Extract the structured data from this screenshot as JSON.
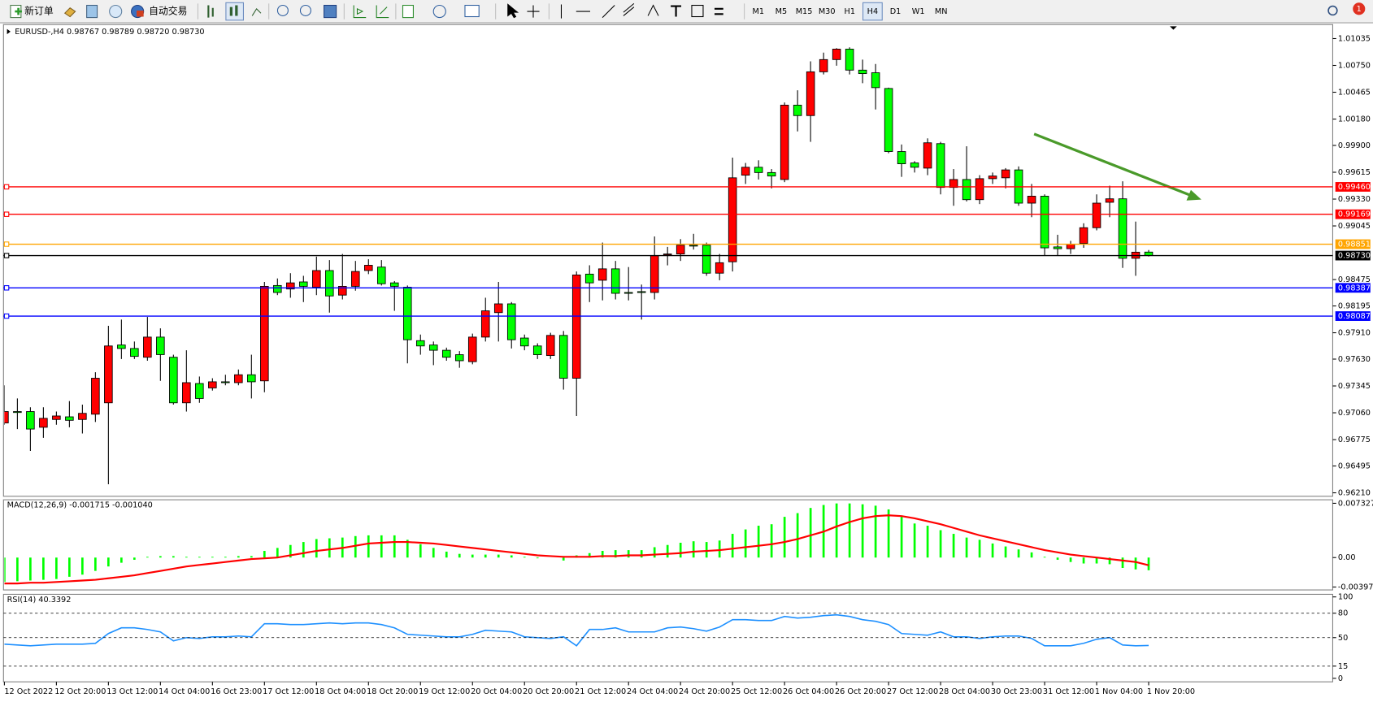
{
  "toolbar": {
    "new_order": "新订单",
    "auto_trading": "自动交易",
    "timeframes": [
      "M1",
      "M5",
      "M15",
      "M30",
      "H1",
      "H4",
      "D1",
      "W1",
      "MN"
    ],
    "active_timeframe": 5,
    "notifications": 1
  },
  "chart_data": [
    {
      "type": "candlestick",
      "title": "EURUSD-,H4  0.98767 0.98789 0.98720 0.98730",
      "categories": [
        "12 Oct 2022",
        null,
        null,
        null,
        "12 Oct 20:00",
        null,
        null,
        null,
        "13 Oct 12:00",
        null,
        null,
        null,
        "14 Oct 04:00",
        null,
        null,
        null,
        "16 Oct 23:00",
        null,
        null,
        null,
        "17 Oct 12:00",
        null,
        null,
        null,
        "18 Oct 04:00",
        null,
        null,
        null,
        "18 Oct 20:00",
        null,
        null,
        null,
        "19 Oct 12:00",
        null,
        null,
        null,
        "20 Oct 04:00",
        null,
        null,
        null,
        "20 Oct 20:00",
        null,
        null,
        null,
        "21 Oct 12:00",
        null,
        null,
        null,
        "24 Oct 04:00",
        null,
        null,
        null,
        "24 Oct 20:00",
        null,
        null,
        null,
        "25 Oct 12:00",
        null,
        null,
        null,
        "26 Oct 04:00",
        null,
        null,
        null,
        "26 Oct 20:00",
        null,
        null,
        null,
        "27 Oct 12:00",
        null,
        null,
        null,
        "28 Oct 04:00",
        null,
        null,
        null,
        "30 Oct 23:00",
        null,
        null,
        null,
        "31 Oct 12:00",
        null,
        null,
        null,
        "1 Nov 04:00",
        null,
        null,
        null,
        "1 Nov 20:00"
      ],
      "open": [
        0.96952,
        0.97073,
        0.97073,
        0.96906,
        0.96989,
        0.97017,
        0.96989,
        0.97045,
        0.97166,
        0.9778,
        0.97743,
        0.9765,
        0.97864,
        0.9765,
        0.97166,
        0.97371,
        0.97324,
        0.97389,
        0.9738,
        0.97464,
        0.97399,
        0.98412,
        0.98375,
        0.9845,
        0.98394,
        0.98571,
        0.9831,
        0.98403,
        0.98571,
        0.98608,
        0.9844,
        0.98394,
        0.97826,
        0.9778,
        0.97724,
        0.97677,
        0.97603,
        0.97864,
        0.98124,
        0.98217,
        0.97854,
        0.9777,
        0.97668,
        0.97882,
        0.97427,
        0.98533,
        0.98468,
        0.98589,
        0.98338,
        0.98347,
        0.98338,
        0.98738,
        0.98747,
        0.9884,
        0.9884,
        0.98543,
        0.98664,
        0.99584,
        0.99668,
        0.99612,
        0.99538,
        1.00328,
        1.00217,
        1.00682,
        1.00812,
        1.00923,
        1.007,
        1.00672,
        1.00505,
        0.99835,
        0.99714,
        0.99659,
        0.99919,
        0.99454,
        0.99538,
        0.99324,
        0.99547,
        0.99556,
        0.9964,
        0.99287,
        0.99361,
        0.98822,
        0.98803,
        0.98859,
        0.99026,
        0.99296,
        0.99333,
        0.98701,
        0.98767
      ],
      "high": [
        0.97352,
        0.97212,
        0.97119,
        0.97119,
        0.97073,
        0.97184,
        0.97147,
        0.97491,
        0.97984,
        0.9805,
        0.97817,
        0.98078,
        0.97957,
        0.97677,
        0.97724,
        0.97445,
        0.97427,
        0.97464,
        0.9752,
        0.97677,
        0.9845,
        0.98487,
        0.98543,
        0.98515,
        0.98719,
        0.98682,
        0.98747,
        0.98673,
        0.98691,
        0.98682,
        0.98459,
        0.98412,
        0.97891,
        0.97817,
        0.97752,
        0.97715,
        0.97901,
        0.98282,
        0.9845,
        0.98236,
        0.97891,
        0.97798,
        0.9791,
        0.97929,
        0.98561,
        0.98627,
        0.98868,
        0.98673,
        0.98608,
        0.98422,
        0.98933,
        0.98822,
        0.98905,
        0.98961,
        0.98868,
        0.98747,
        0.9977,
        0.99714,
        0.99742,
        0.99649,
        1.00356,
        1.00486,
        1.00793,
        1.00886,
        1.00933,
        1.00942,
        1.00812,
        1.00765,
        1.00514,
        0.9991,
        0.99733,
        0.99975,
        0.99938,
        0.99649,
        0.99891,
        0.99584,
        0.99612,
        0.99659,
        0.99677,
        0.99491,
        0.9938,
        0.98951,
        0.98886,
        0.99073,
        0.9938,
        0.99472,
        0.99519,
        0.99091,
        0.98789
      ],
      "low": [
        0.96933,
        0.96887,
        0.96655,
        0.96794,
        0.96933,
        0.96906,
        0.9684,
        0.96962,
        0.96301,
        0.97631,
        0.97631,
        0.97613,
        0.97399,
        0.97147,
        0.97073,
        0.97166,
        0.97296,
        0.97352,
        0.97352,
        0.97212,
        0.97278,
        0.9831,
        0.98282,
        0.98236,
        0.9831,
        0.98124,
        0.98264,
        0.98357,
        0.98533,
        0.98412,
        0.98143,
        0.97585,
        0.97677,
        0.97566,
        0.97613,
        0.97538,
        0.97575,
        0.97817,
        0.97817,
        0.97743,
        0.97724,
        0.97631,
        0.97631,
        0.97306,
        0.97026,
        0.98236,
        0.98254,
        0.98264,
        0.98254,
        0.9805,
        0.98264,
        0.98626,
        0.98673,
        0.98794,
        0.98515,
        0.98468,
        0.98561,
        0.99491,
        0.99538,
        0.99444,
        0.9951,
        1.00049,
        0.99938,
        1.00654,
        1.00747,
        1.00654,
        1.00561,
        1.00282,
        0.99817,
        0.99566,
        0.99612,
        0.99584,
        0.9938,
        0.99259,
        0.99305,
        0.99277,
        0.99491,
        0.99444,
        0.99259,
        0.99138,
        0.98729,
        0.98729,
        0.98747,
        0.98812,
        0.98998,
        0.99138,
        0.98599,
        0.98515,
        0.9872
      ],
      "close": [
        0.97073,
        0.97063,
        0.96887,
        0.97001,
        0.97026,
        0.9698,
        0.97054,
        0.97427,
        0.9777,
        0.97743,
        0.97659,
        0.97864,
        0.97678,
        0.97166,
        0.9738,
        0.97212,
        0.97389,
        0.9738,
        0.97464,
        0.97389,
        0.98403,
        0.98338,
        0.9844,
        0.98403,
        0.98571,
        0.98301,
        0.98403,
        0.98561,
        0.98627,
        0.98431,
        0.98403,
        0.97836,
        0.9777,
        0.97724,
        0.9765,
        0.97613,
        0.97864,
        0.98143,
        0.98217,
        0.97836,
        0.9777,
        0.97677,
        0.97882,
        0.97427,
        0.98524,
        0.9844,
        0.98589,
        0.98329,
        0.98329,
        0.98338,
        0.98729,
        0.98747,
        0.9884,
        0.98831,
        0.98543,
        0.98654,
        0.99556,
        0.99668,
        0.99612,
        0.99575,
        1.00328,
        1.00217,
        1.00682,
        1.00812,
        1.00923,
        1.007,
        1.00663,
        1.00514,
        0.99835,
        0.99705,
        0.99668,
        0.99928,
        0.99454,
        0.99538,
        0.99324,
        0.99547,
        0.99575,
        0.9964,
        0.99287,
        0.99361,
        0.98812,
        0.98803,
        0.9885,
        0.99026,
        0.99287,
        0.99333,
        0.98701,
        0.98766,
        0.9873
      ],
      "up_color": "#ff0000",
      "down_color": "#00ff00",
      "ylim": [
        0.96173,
        1.01184
      ],
      "yticks": [
        1.01035,
        {
          "value": 1.0075,
          "label": "1.00750"
        },
        1.00465,
        {
          "value": 1.0018,
          "label": "1.00180"
        },
        {
          "value": 0.999,
          "label": "0.99900"
        },
        0.99615,
        {
          "value": 0.9933,
          "label": "0.99330"
        },
        0.99045,
        0.98475,
        0.98195,
        {
          "value": 0.9791,
          "label": "0.97910"
        },
        {
          "value": 0.9763,
          "label": "0.97630"
        },
        0.97345,
        {
          "value": 0.9706,
          "label": "0.97060"
        },
        0.96775,
        0.96495,
        {
          "value": 0.9621,
          "label": "0.96210"
        }
      ],
      "hlines": [
        {
          "value": 0.9946,
          "label": "0.99460",
          "color": "#ff0000"
        },
        {
          "value": 0.99169,
          "color": "#ff0000"
        },
        {
          "value": 0.98851,
          "color": "#ffa500"
        },
        {
          "value": 0.9873,
          "label": "0.98730",
          "color": "#000000"
        },
        {
          "value": 0.98387,
          "color": "#0000ff"
        },
        {
          "value": 0.98087,
          "color": "#0000ff"
        }
      ]
    },
    {
      "type": "macd",
      "title": "MACD(12,26,9) -0.001715 -0.001040",
      "ylim": [
        -0.00437,
        0.0078
      ],
      "yticks": [
        0.007327,
        {
          "value": 0,
          "label": "0.00"
        },
        -0.003978
      ],
      "series": [
        {
          "type": "bar",
          "color": "#00ff00",
          "values": [
            -0.0033,
            -0.0032,
            -0.0031,
            -0.003,
            -0.0029,
            -0.0026,
            -0.0023,
            -0.0018,
            -0.0012,
            -0.0007,
            -0.0003,
            0.0001,
            0.0002,
            0.0002,
            0.0001,
            0.0001,
            0.0001,
            0.0001,
            0.0002,
            0.0002,
            0.0009,
            0.0013,
            0.0017,
            0.0021,
            0.0025,
            0.0026,
            0.0027,
            0.0029,
            0.003,
            0.003,
            0.003,
            0.0024,
            0.0018,
            0.0013,
            0.0008,
            0.0005,
            0.0004,
            0.0004,
            0.0004,
            0.0003,
            0.0001,
            -0.0001,
            0,
            -0.0004,
            0.0003,
            0.0006,
            0.0009,
            0.001,
            0.001,
            0.001,
            0.0014,
            0.0017,
            0.002,
            0.0022,
            0.0021,
            0.0023,
            0.0032,
            0.0038,
            0.0043,
            0.0045,
            0.0055,
            0.006,
            0.0067,
            0.0071,
            0.0073,
            0.0073,
            0.0072,
            0.007,
            0.0065,
            0.0055,
            0.0046,
            0.0043,
            0.0037,
            0.0032,
            0.0027,
            0.0024,
            0.0019,
            0.0015,
            0.0011,
            0.0007,
            0.0001,
            -0.0003,
            -0.0006,
            -0.0008,
            -0.0008,
            -0.0009,
            -0.0014,
            -0.0016,
            -0.001715
          ]
        },
        {
          "type": "line",
          "color": "#ff0000",
          "values": [
            -0.0035,
            -0.0035,
            -0.0034,
            -0.0034,
            -0.0033,
            -0.0032,
            -0.0031,
            -0.003,
            -0.0028,
            -0.0026,
            -0.0024,
            -0.0021,
            -0.0018,
            -0.0015,
            -0.0012,
            -0.001,
            -0.0008,
            -0.0006,
            -0.0004,
            -0.0002,
            -0.0001,
            0,
            0.0003,
            0.0006,
            0.0009,
            0.0011,
            0.0013,
            0.0016,
            0.0019,
            0.002,
            0.0021,
            0.0021,
            0.002,
            0.0019,
            0.0017,
            0.0015,
            0.0013,
            0.0011,
            0.0009,
            0.0007,
            0.0005,
            0.0003,
            0.0002,
            0.0001,
            0.0001,
            0.0001,
            0.0002,
            0.0002,
            0.0003,
            0.0003,
            0.0004,
            0.0005,
            0.0006,
            0.0008,
            0.0009,
            0.001,
            0.0012,
            0.0014,
            0.0016,
            0.0018,
            0.0021,
            0.0025,
            0.003,
            0.0035,
            0.0042,
            0.0048,
            0.0053,
            0.0056,
            0.0057,
            0.0056,
            0.0053,
            0.0049,
            0.0045,
            0.004,
            0.0035,
            0.003,
            0.0026,
            0.0022,
            0.0018,
            0.0014,
            0.001,
            0.0007,
            0.0004,
            0.0002,
            0,
            -0.0002,
            -0.0004,
            -0.0006,
            -0.00104
          ]
        }
      ]
    },
    {
      "type": "line",
      "title": "RSI(14) 40.3392",
      "color": "#1e90ff",
      "ylim": [
        -4.3,
        103.2
      ],
      "yticks": [
        100,
        80,
        50,
        15,
        0
      ],
      "levels": [
        80,
        50,
        15
      ],
      "values": [
        42,
        41,
        40,
        41,
        42,
        42,
        42,
        43,
        55,
        62,
        62,
        60,
        57,
        46,
        50,
        49,
        51,
        51,
        52,
        51,
        67,
        67,
        66,
        66,
        67,
        68,
        67,
        68,
        68,
        66,
        62,
        54,
        53,
        52,
        51,
        51,
        54,
        59,
        58,
        57,
        51,
        50,
        49,
        51,
        40,
        60,
        60,
        62,
        57,
        57,
        57,
        62,
        63,
        61,
        58,
        63,
        72,
        72,
        71,
        71,
        76,
        74,
        75,
        77,
        78,
        76,
        72,
        70,
        66,
        55,
        54,
        53,
        57,
        51,
        51,
        49,
        51,
        52,
        52,
        49,
        40,
        40,
        40,
        43,
        48,
        50,
        41,
        40,
        40.3392
      ]
    }
  ]
}
